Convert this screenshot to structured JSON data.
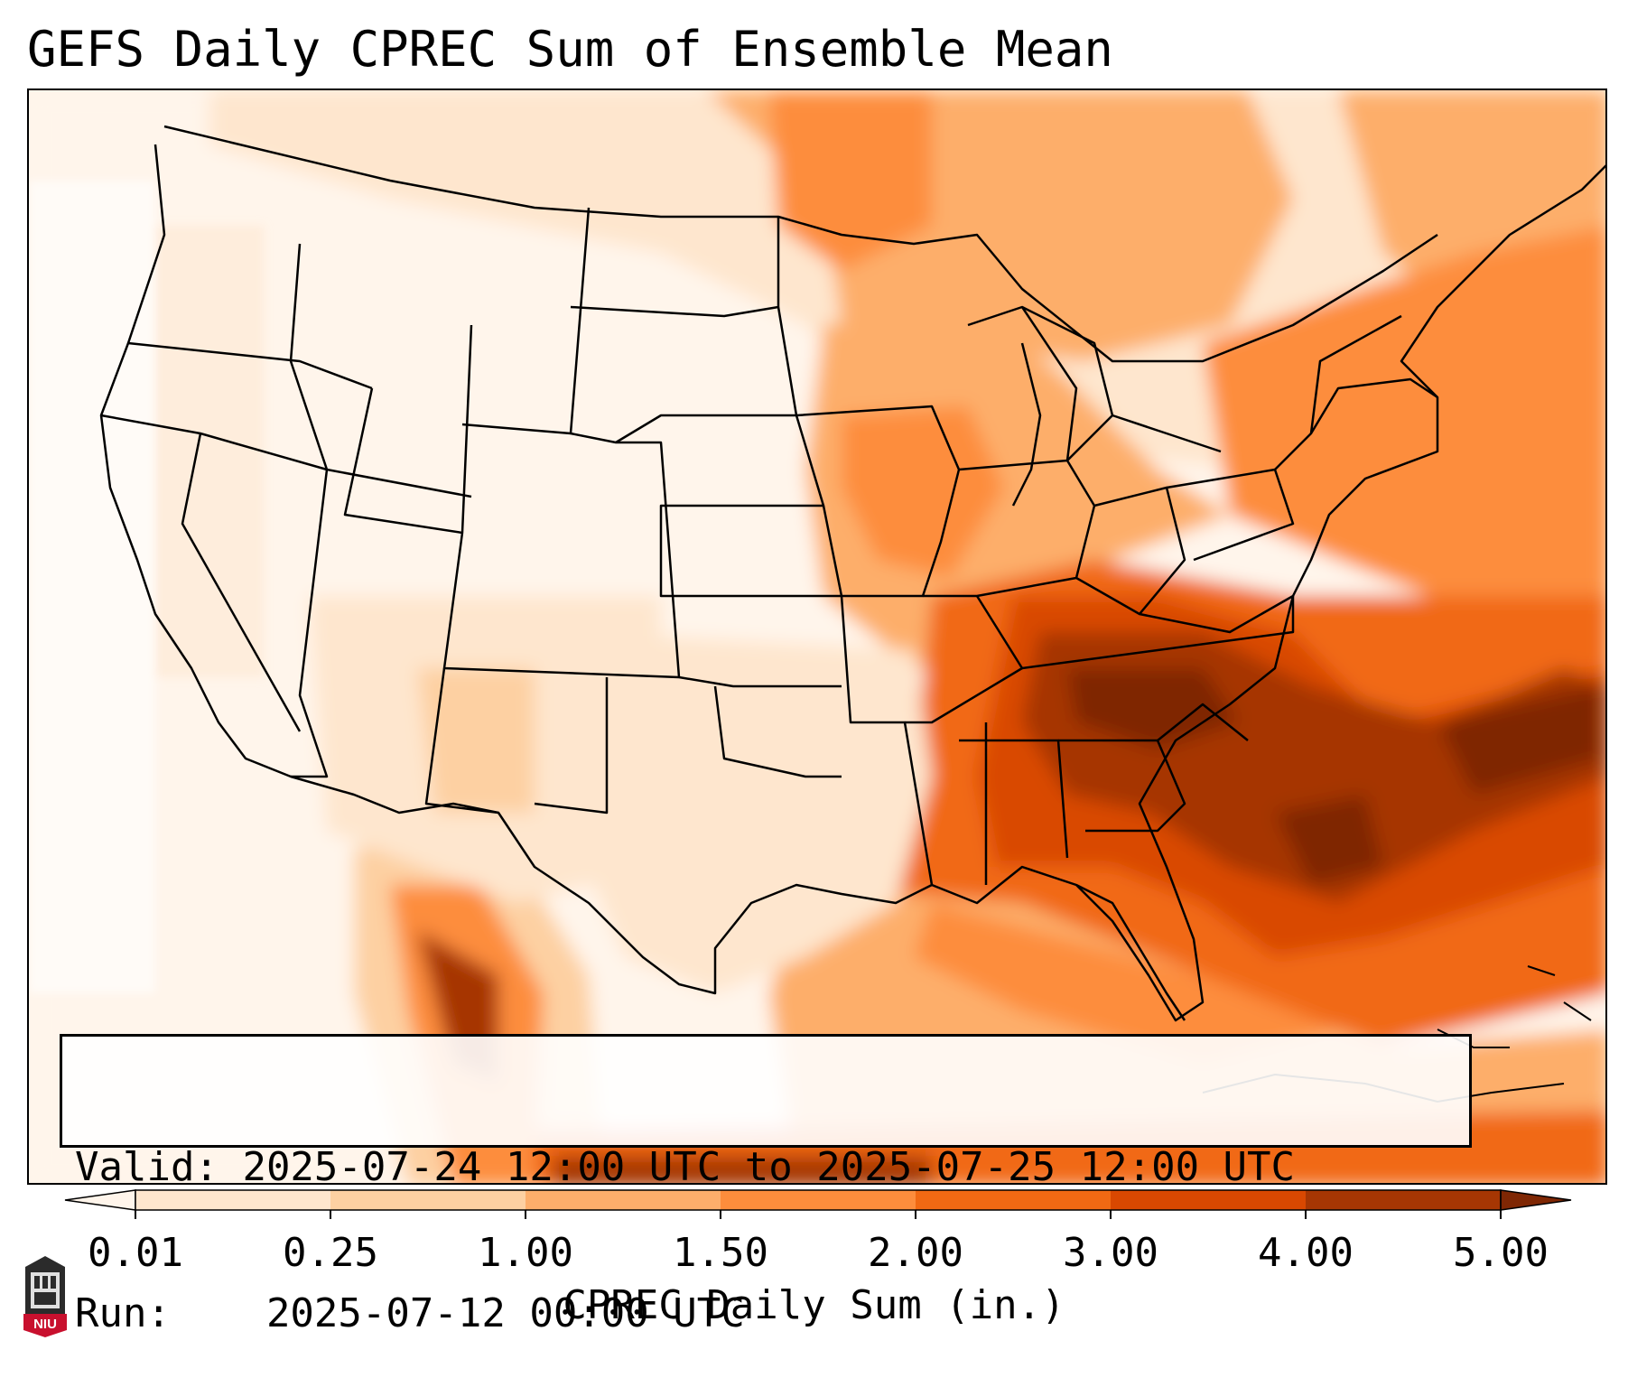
{
  "title": "GEFS Daily CPREC Sum of Ensemble Mean",
  "info_box": {
    "valid_label": "Valid:",
    "valid_value": "2025-07-24 12:00 UTC to 2025-07-25 12:00 UTC",
    "run_label": "Run:",
    "run_value": "2025-07-12 00:00 UTC"
  },
  "colorbar": {
    "label": "CPREC Daily Sum (in.)",
    "ticks": [
      "0.01",
      "0.25",
      "1.00",
      "1.50",
      "2.00",
      "3.00",
      "4.00",
      "5.00"
    ],
    "colors": [
      "#fee6ce",
      "#fdd0a2",
      "#fdae6b",
      "#fd8d3c",
      "#f16913",
      "#d94801",
      "#a63603"
    ],
    "under_color": "#fff5eb",
    "over_color": "#7f2704",
    "extend": "both"
  },
  "map": {
    "region": "Contiguous United States",
    "heavy_precip_areas": [
      "Tennessee",
      "Mississippi",
      "Alabama",
      "Georgia",
      "South Carolina",
      "Atlantic offshore",
      "Western Mexico"
    ]
  },
  "logo": {
    "text": "NIU",
    "colors": {
      "tower": "#2b2b2b",
      "shield": "#c8102e"
    }
  }
}
